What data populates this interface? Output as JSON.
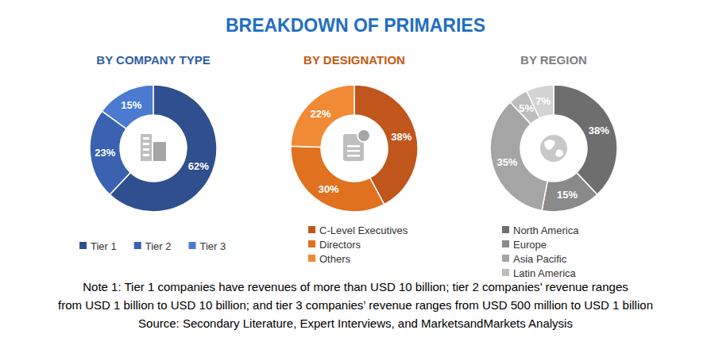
{
  "title": "BREAKDOWN OF PRIMARIES",
  "chart_data": [
    {
      "type": "pie",
      "title": "BY COMPANY TYPE",
      "categories": [
        "Tier 1",
        "Tier 2",
        "Tier 3"
      ],
      "values": [
        62,
        23,
        15
      ],
      "value_labels": [
        "62%",
        "23%",
        "15%"
      ],
      "colors": [
        "#2f4f8f",
        "#3a62b0",
        "#4a7bd0"
      ],
      "data_labels": true,
      "legend": "bottom"
    },
    {
      "type": "pie",
      "title": "BY DESIGNATION",
      "categories": [
        "C-Level Executives",
        "Directors",
        "Others"
      ],
      "values": [
        38,
        30,
        22
      ],
      "value_labels": [
        "38%",
        "30%",
        "22%"
      ],
      "colors": [
        "#c0561b",
        "#e0711f",
        "#f08a35"
      ],
      "data_labels": true,
      "legend": "bottom"
    },
    {
      "type": "pie",
      "title": "BY REGION",
      "categories": [
        "North America",
        "Europe",
        "Asia Pacific",
        "Latin America",
        null
      ],
      "values": [
        38,
        15,
        35,
        5,
        7
      ],
      "value_labels": [
        "38%",
        "15%",
        "35%",
        "5%",
        "7%"
      ],
      "colors": [
        "#6e6e6e",
        "#8a8a8a",
        "#a5a5a5",
        "#bdbdbd",
        "#d3d3d3"
      ],
      "data_labels": true,
      "legend": "bottom"
    }
  ],
  "note": [
    "Note 1: Tier 1 companies have revenues of more than USD 10 billion; tier 2 companies’ revenue ranges",
    "from USD 1 billion to USD 10 billion; and tier 3 companies’ revenue ranges from USD 500 million to USD 1 billion"
  ],
  "source": "Source: Secondary Literature, Expert Interviews, and MarketsandMarkets Analysis"
}
